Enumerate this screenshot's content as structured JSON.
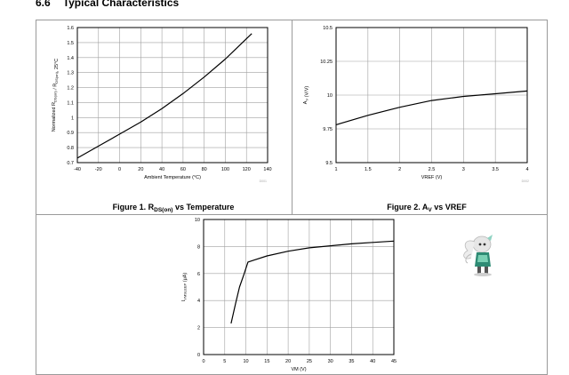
{
  "section": {
    "number": "6.6",
    "title": "Typical Characteristics"
  },
  "colors": {
    "grid": "#a0a0a0",
    "border": "#9a9a9a",
    "curve": "#000000"
  },
  "chart_data": [
    {
      "type": "line",
      "id": "fig1",
      "title": "Figure 1. R",
      "title_sub": "DS(on)",
      "title_rest": " vs Temperature",
      "xlabel": "Ambient Temperature (°C)",
      "ylabel": "Normalized R",
      "ylabel_sub": "DS(on)",
      "ylabel_mid": " / R",
      "ylabel_sub2": "DS(on)",
      "ylabel_end": ", 25°C",
      "xlim": [
        -40,
        140
      ],
      "ylim": [
        0.7,
        1.6
      ],
      "xticks": [
        -40,
        -20,
        0,
        20,
        40,
        60,
        80,
        100,
        120,
        140
      ],
      "yticks": [
        0.7,
        0.8,
        0.9,
        1,
        1.1,
        1.2,
        1.3,
        1.4,
        1.5,
        1.6
      ],
      "grid": true,
      "note": "D001",
      "x": [
        -40,
        -20,
        0,
        20,
        40,
        60,
        80,
        100,
        125
      ],
      "y": [
        0.73,
        0.81,
        0.89,
        0.97,
        1.06,
        1.16,
        1.27,
        1.39,
        1.56
      ]
    },
    {
      "type": "line",
      "id": "fig2",
      "title": "Figure 2. A",
      "title_sub": "V",
      "title_rest": " vs VREF",
      "xlabel": "VREF (V)",
      "ylabel": "A",
      "ylabel_sub": "V",
      "ylabel_end": " (V/V)",
      "xlim": [
        1,
        4
      ],
      "ylim": [
        9.5,
        10.5
      ],
      "xticks": [
        1,
        1.5,
        2,
        2.5,
        3,
        3.5,
        4
      ],
      "yticks": [
        9.5,
        9.75,
        10,
        10.25,
        10.5
      ],
      "grid": true,
      "note": "D002",
      "x": [
        1,
        1.5,
        2,
        2.5,
        3,
        3.5,
        4
      ],
      "y": [
        9.78,
        9.85,
        9.91,
        9.96,
        9.99,
        10.01,
        10.03
      ]
    },
    {
      "type": "line",
      "id": "fig3",
      "xlabel": "VM (V)",
      "ylabel": "I",
      "ylabel_sub": "VMSLEEP",
      "ylabel_end": " (μA)",
      "xlim": [
        0,
        45
      ],
      "ylim": [
        0,
        10
      ],
      "xticks": [
        0,
        5,
        10,
        15,
        20,
        25,
        30,
        35,
        40,
        45
      ],
      "yticks": [
        0,
        2,
        4,
        6,
        8,
        10
      ],
      "grid": true,
      "x": [
        6.5,
        7.5,
        8.5,
        9.5,
        10.5,
        12,
        15,
        20,
        25,
        30,
        35,
        40,
        45
      ],
      "y": [
        2.3,
        3.7,
        5.0,
        5.9,
        6.85,
        7.0,
        7.3,
        7.65,
        7.9,
        8.05,
        8.2,
        8.3,
        8.4
      ]
    }
  ]
}
